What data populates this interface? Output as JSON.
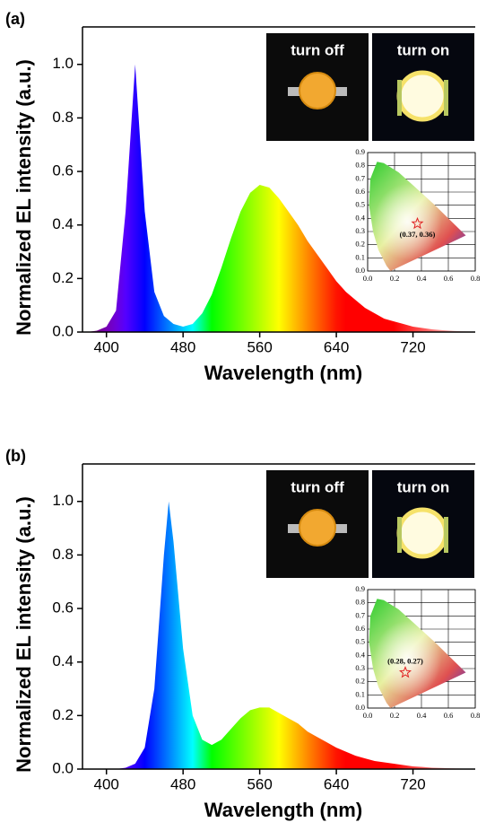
{
  "chart_data": [
    {
      "type": "area",
      "panel_label": "(a)",
      "xlabel": "Wavelength (nm)",
      "ylabel": "Normalized EL intensity (a.u.)",
      "xlim": [
        375,
        785
      ],
      "ylim": [
        0,
        1.14
      ],
      "xticks": [
        400,
        480,
        560,
        640,
        720
      ],
      "yticks": [
        {
          "value": 0,
          "label": "0.0"
        },
        0.2,
        0.4,
        0.6,
        0.8,
        {
          "value": 1,
          "label": "1.0"
        }
      ],
      "x": [
        380,
        390,
        400,
        410,
        420,
        430,
        440,
        450,
        460,
        470,
        480,
        490,
        500,
        510,
        520,
        530,
        540,
        550,
        560,
        570,
        580,
        590,
        600,
        610,
        620,
        630,
        640,
        650,
        660,
        670,
        680,
        690,
        700,
        710,
        720,
        730,
        740,
        750,
        760,
        770,
        780
      ],
      "values": [
        0,
        0.005,
        0.02,
        0.08,
        0.45,
        1.0,
        0.45,
        0.15,
        0.06,
        0.03,
        0.02,
        0.03,
        0.07,
        0.14,
        0.24,
        0.35,
        0.45,
        0.52,
        0.55,
        0.54,
        0.5,
        0.45,
        0.4,
        0.34,
        0.29,
        0.24,
        0.19,
        0.15,
        0.12,
        0.09,
        0.07,
        0.05,
        0.04,
        0.03,
        0.02,
        0.015,
        0.01,
        0.007,
        0.005,
        0.003,
        0.002
      ],
      "photos": [
        "turn off",
        "turn on"
      ],
      "cie": {
        "xlim": [
          0,
          0.8
        ],
        "ylim": [
          0,
          0.9
        ],
        "xticks": [
          {
            "value": 0,
            "label": "0.0"
          },
          0.2,
          0.4,
          0.6,
          0.8
        ],
        "yticks": [
          {
            "value": 0,
            "label": "0.0"
          },
          0.1,
          0.2,
          0.3,
          0.4,
          0.5,
          0.6,
          0.7,
          0.8,
          0.9
        ],
        "point": [
          0.37,
          0.36
        ],
        "point_label": "(0.37, 0.36)"
      }
    },
    {
      "type": "area",
      "panel_label": "(b)",
      "xlabel": "Wavelength (nm)",
      "ylabel": "Normalized EL intensity (a.u.)",
      "xlim": [
        375,
        785
      ],
      "ylim": [
        0,
        1.14
      ],
      "xticks": [
        400,
        480,
        560,
        640,
        720
      ],
      "yticks": [
        {
          "value": 0,
          "label": "0.0"
        },
        0.2,
        0.4,
        0.6,
        0.8,
        {
          "value": 1,
          "label": "1.0"
        }
      ],
      "x": [
        380,
        390,
        400,
        410,
        420,
        430,
        440,
        450,
        460,
        465,
        470,
        480,
        490,
        500,
        510,
        520,
        530,
        540,
        550,
        560,
        570,
        580,
        590,
        600,
        610,
        620,
        630,
        640,
        650,
        660,
        670,
        680,
        690,
        700,
        710,
        720,
        730,
        740,
        750,
        760,
        770,
        780
      ],
      "values": [
        0,
        0,
        0,
        0,
        0.005,
        0.02,
        0.08,
        0.3,
        0.8,
        1.0,
        0.85,
        0.45,
        0.2,
        0.11,
        0.09,
        0.11,
        0.15,
        0.19,
        0.22,
        0.23,
        0.23,
        0.21,
        0.19,
        0.17,
        0.14,
        0.12,
        0.1,
        0.08,
        0.065,
        0.05,
        0.04,
        0.03,
        0.025,
        0.02,
        0.015,
        0.01,
        0.008,
        0.005,
        0.004,
        0.003,
        0.002,
        0.001
      ],
      "photos": [
        "turn off",
        "turn on"
      ],
      "cie": {
        "xlim": [
          0,
          0.8
        ],
        "ylim": [
          0,
          0.9
        ],
        "xticks": [
          {
            "value": 0,
            "label": "0.0"
          },
          0.2,
          0.4,
          0.6,
          0.8
        ],
        "yticks": [
          {
            "value": 0,
            "label": "0.0"
          },
          0.1,
          0.2,
          0.3,
          0.4,
          0.5,
          0.6,
          0.7,
          0.8,
          0.9
        ],
        "point": [
          0.28,
          0.27
        ],
        "point_label": "(0.28, 0.27)"
      }
    }
  ]
}
